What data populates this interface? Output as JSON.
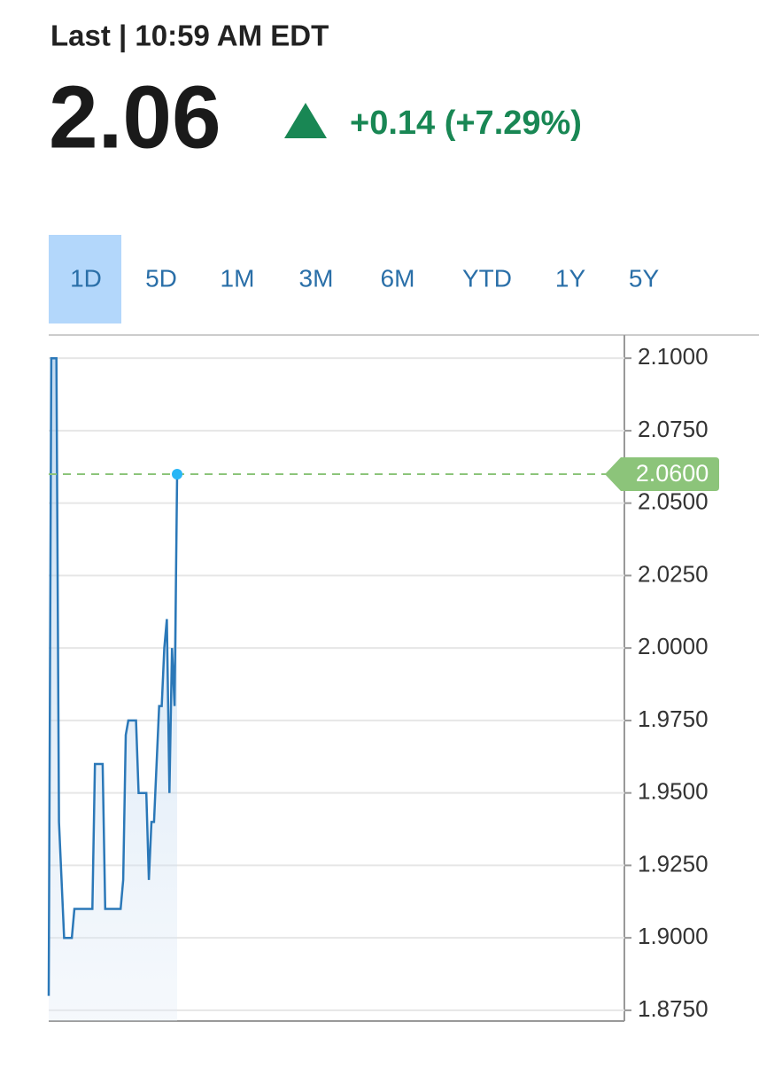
{
  "header": {
    "quote_time": "Last | 10:59 AM EDT",
    "price": "2.06",
    "change": "+0.14 (+7.29%)"
  },
  "tabs": {
    "items": [
      "1D",
      "5D",
      "1M",
      "3M",
      "6M",
      "YTD",
      "1Y",
      "5Y"
    ],
    "active": 0
  },
  "chart_data": {
    "type": "line",
    "values": [
      1.88,
      2.1,
      2.1,
      2.1,
      1.94,
      1.92,
      1.9,
      1.9,
      1.9,
      1.9,
      1.91,
      1.91,
      1.91,
      1.91,
      1.91,
      1.91,
      1.91,
      1.91,
      1.96,
      1.96,
      1.96,
      1.96,
      1.91,
      1.91,
      1.91,
      1.91,
      1.91,
      1.91,
      1.91,
      1.92,
      1.97,
      1.975,
      1.975,
      1.975,
      1.975,
      1.95,
      1.95,
      1.95,
      1.95,
      1.92,
      1.94,
      1.94,
      1.96,
      1.98,
      1.98,
      2.0,
      2.01,
      1.95,
      2.0,
      1.98,
      2.06
    ],
    "color": "#2b78b8",
    "last_label": "2.0600",
    "last_color": "#8cc47a",
    "ylim": [
      1.8713,
      2.108
    ],
    "yticks": [
      {
        "value": 2.1,
        "label": "2.1000"
      },
      {
        "value": 2.075,
        "label": "2.0750"
      },
      {
        "value": 2.05,
        "label": "2.0500"
      },
      {
        "value": 2.025,
        "label": "2.0250"
      },
      {
        "value": 2.0,
        "label": "2.0000"
      },
      {
        "value": 1.975,
        "label": "1.9750"
      },
      {
        "value": 1.95,
        "label": "1.9500"
      },
      {
        "value": 1.925,
        "label": "1.9250"
      },
      {
        "value": 1.9,
        "label": "1.9000"
      },
      {
        "value": 1.875,
        "label": "1.8750"
      }
    ],
    "grid": true
  }
}
